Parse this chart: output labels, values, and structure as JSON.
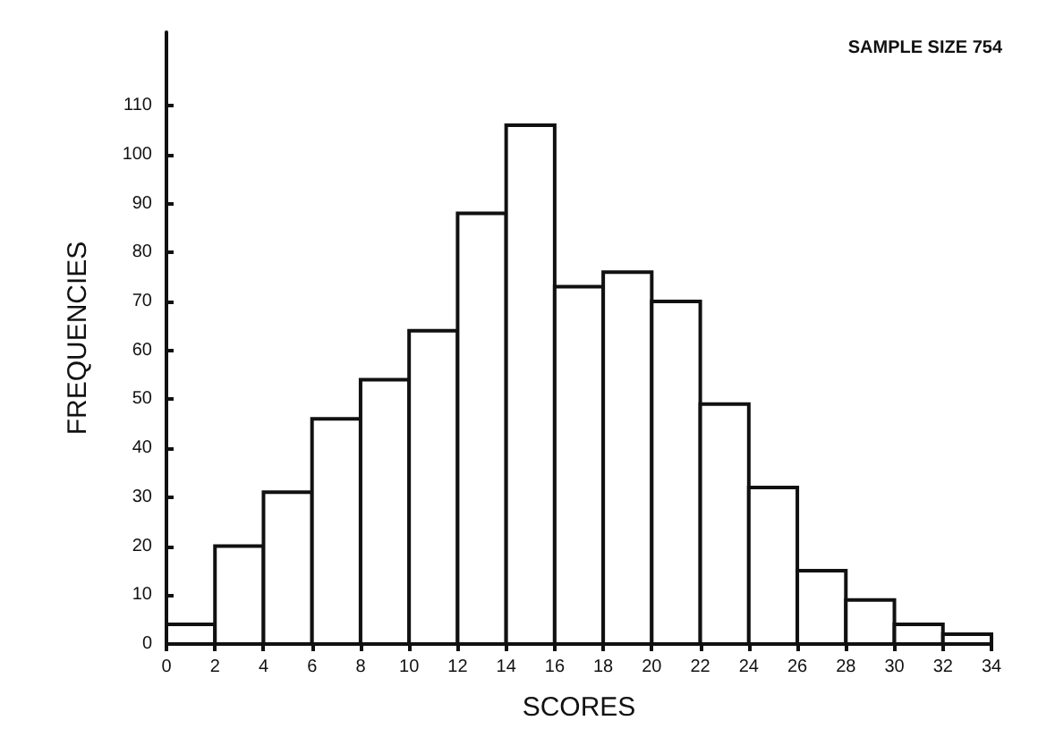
{
  "chart_data": {
    "type": "histogram",
    "xlabel": "SCORES",
    "ylabel": "FREQUENCIES",
    "annotations": [
      "SAMPLE SIZE 754"
    ],
    "bins": [
      0,
      2,
      4,
      6,
      8,
      10,
      12,
      14,
      16,
      18,
      20,
      22,
      24,
      26,
      28,
      30,
      32,
      34
    ],
    "values": [
      4,
      20,
      31,
      46,
      54,
      64,
      88,
      106,
      73,
      76,
      70,
      49,
      32,
      15,
      9,
      4,
      2
    ],
    "color": "#ffffff",
    "xlim": [
      0,
      34
    ],
    "xticks": [
      0,
      2,
      4,
      6,
      8,
      10,
      12,
      14,
      16,
      18,
      20,
      22,
      24,
      26,
      28,
      30,
      32,
      34
    ],
    "ylim": [
      0,
      125
    ],
    "yticks": [
      0,
      10,
      20,
      30,
      40,
      50,
      60,
      70,
      80,
      90,
      100,
      110
    ],
    "grid": false
  }
}
